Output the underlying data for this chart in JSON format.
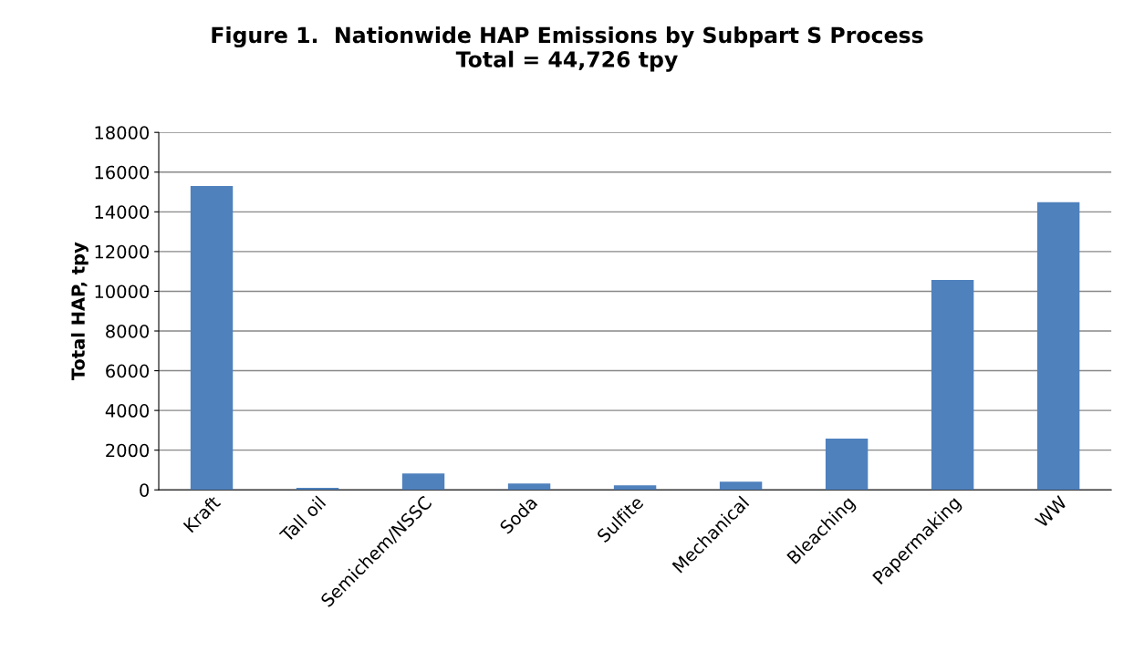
{
  "chart_data": {
    "type": "bar",
    "title": "Figure 1.  Nationwide HAP Emissions by Subpart S Process\nTotal = 44,726 tpy",
    "ylabel": "Total HAP, tpy",
    "categories": [
      "Kraft",
      "Tall oil",
      "Semichem/NSSC",
      "Soda",
      "Sulfite",
      "Mechanical",
      "Bleaching",
      "Papermaking",
      "WW"
    ],
    "values": [
      15300,
      100,
      830,
      320,
      230,
      415,
      2580,
      10570,
      14490
    ],
    "color": "#4f81bd",
    "ylim": [
      0,
      18000
    ],
    "yticks": [
      0,
      2000,
      4000,
      6000,
      8000,
      10000,
      12000,
      14000,
      16000,
      18000
    ],
    "grid": "y",
    "legend": false
  }
}
